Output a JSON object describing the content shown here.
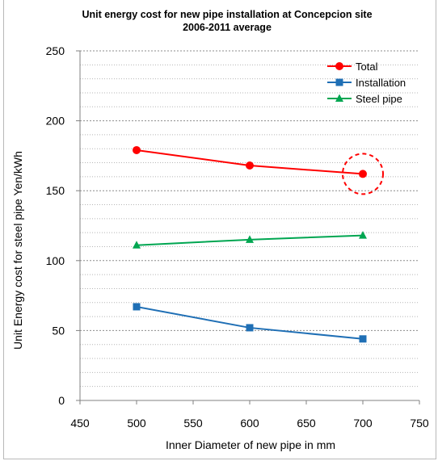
{
  "chart_data": {
    "type": "line",
    "title": "Unit energy cost for new pipe installation at Concepcion site",
    "subtitle": "2006-2011 average",
    "xlabel": "Inner Diameter of new pipe in mm",
    "ylabel": "Unit Energy cost for steel pipe  Yen/kWh",
    "x": [
      500,
      600,
      700
    ],
    "xlim": [
      450,
      750
    ],
    "ylim": [
      0,
      250
    ],
    "xticks": [
      450,
      500,
      550,
      600,
      650,
      700,
      750
    ],
    "yticks": [
      0,
      50,
      100,
      150,
      200,
      250
    ],
    "grid": "horizontal dotted",
    "legend_position": "top-right",
    "series": [
      {
        "name": "Total",
        "values": [
          179,
          168,
          162
        ],
        "color": "#ff0000",
        "marker": "circle"
      },
      {
        "name": "Installation",
        "values": [
          67,
          52,
          44
        ],
        "color": "#1f6fb5",
        "marker": "square"
      },
      {
        "name": "Steel pipe",
        "values": [
          111,
          115,
          118
        ],
        "color": "#00a651",
        "marker": "triangle"
      }
    ],
    "annotation": {
      "shape": "dashed circle",
      "x": 700,
      "y": 162,
      "color": "#ff0000"
    }
  }
}
